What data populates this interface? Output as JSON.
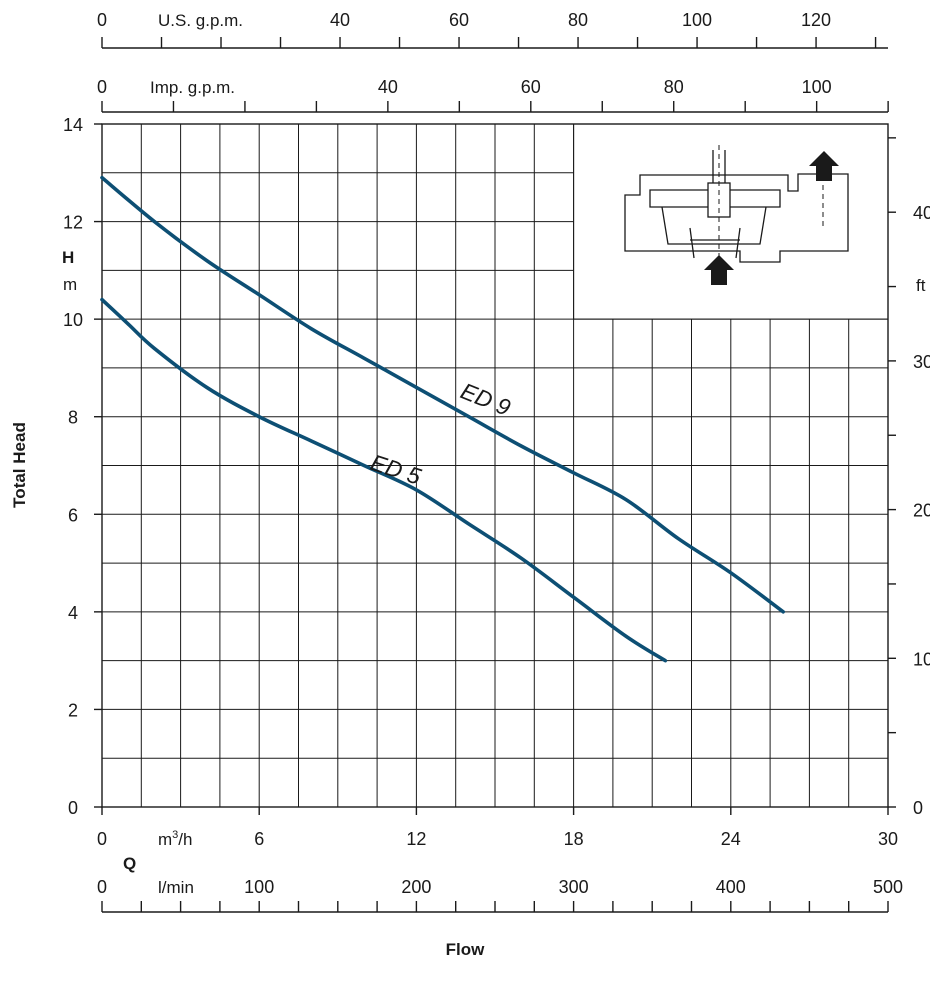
{
  "chart_data": {
    "type": "line",
    "title": "",
    "ylabel": "Total Head",
    "xlabel": "Flow",
    "x_unit": "m³/h",
    "x_unit_sup": "3",
    "x_axis_symbol": "Q",
    "y_axis_symbol": "H",
    "y_unit": "m",
    "y_right_unit": "ft",
    "xlim": [
      0,
      30
    ],
    "ylim": [
      0,
      14
    ],
    "x_ticks": [
      "0",
      "6",
      "12",
      "18",
      "24",
      "30"
    ],
    "y_ticks": [
      "0",
      "2",
      "4",
      "6",
      "8",
      "10",
      "12",
      "14"
    ],
    "y_right_ticks": [
      "0",
      "10",
      "20",
      "30",
      "40"
    ],
    "lmin_unit": "l/min",
    "lmin_ticks": [
      "0",
      "100",
      "200",
      "300",
      "400",
      "500"
    ],
    "usgpm_unit": "U.S. g.p.m.",
    "usgpm_ticks": [
      "0",
      "40",
      "60",
      "80",
      "100",
      "120"
    ],
    "impgpm_unit": "Imp. g.p.m.",
    "impgpm_ticks": [
      "0",
      "40",
      "60",
      "80",
      "100"
    ],
    "grid": true,
    "series": [
      {
        "name": "ED 9",
        "x": [
          0,
          2,
          4,
          6,
          8,
          10,
          12,
          14,
          16,
          18,
          20,
          22,
          24,
          26
        ],
        "y": [
          12.9,
          12.0,
          11.2,
          10.5,
          9.8,
          9.2,
          8.6,
          8.0,
          7.4,
          6.85,
          6.3,
          5.5,
          4.8,
          4.0
        ]
      },
      {
        "name": "ED 5",
        "x": [
          0,
          1,
          2,
          4,
          6,
          8,
          10,
          12,
          14,
          16,
          18,
          20,
          21.5
        ],
        "y": [
          10.4,
          9.9,
          9.4,
          8.6,
          8.0,
          7.5,
          7.0,
          6.5,
          5.8,
          5.1,
          4.3,
          3.5,
          3.0
        ]
      }
    ],
    "colors": {
      "curve": "#0d4f74",
      "axis": "#1a1a1a"
    }
  }
}
